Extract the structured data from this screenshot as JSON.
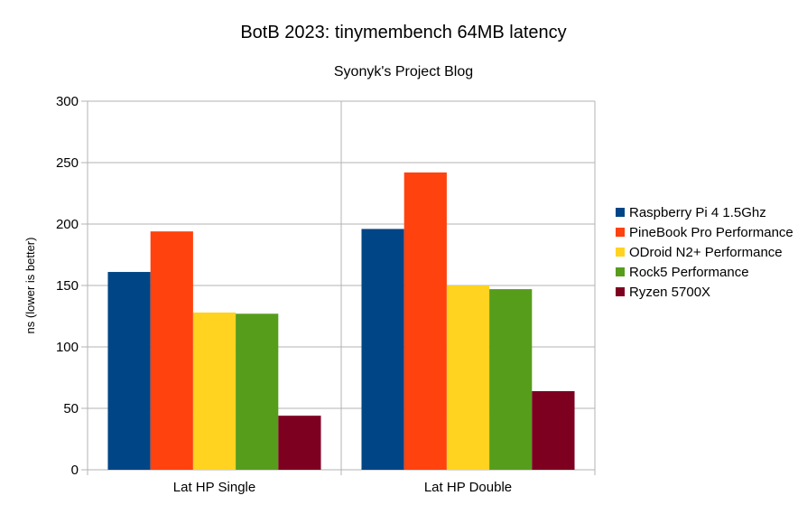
{
  "chart_data": {
    "type": "bar",
    "title": "BotB 2023: tinymembench 64MB latency",
    "subtitle": "Syonyk's Project Blog",
    "xlabel": "",
    "ylabel": "ns (lower is better)",
    "ylim": [
      0,
      300
    ],
    "yticks": [
      0,
      50,
      100,
      150,
      200,
      250,
      300
    ],
    "grid": true,
    "legend_position": "right",
    "categories": [
      "Lat HP Single",
      "Lat HP Double"
    ],
    "series": [
      {
        "name": "Raspberry Pi 4 1.5Ghz",
        "color": "#004586",
        "values": [
          161,
          196
        ]
      },
      {
        "name": "PineBook Pro Performance",
        "color": "#ff420e",
        "values": [
          194,
          242
        ]
      },
      {
        "name": "ODroid N2+ Performance",
        "color": "#ffd320",
        "values": [
          128,
          150
        ]
      },
      {
        "name": "Rock5 Performance",
        "color": "#579d1c",
        "values": [
          127,
          147
        ]
      },
      {
        "name": "Ryzen 5700X",
        "color": "#7e0021",
        "values": [
          44,
          64
        ]
      }
    ]
  }
}
